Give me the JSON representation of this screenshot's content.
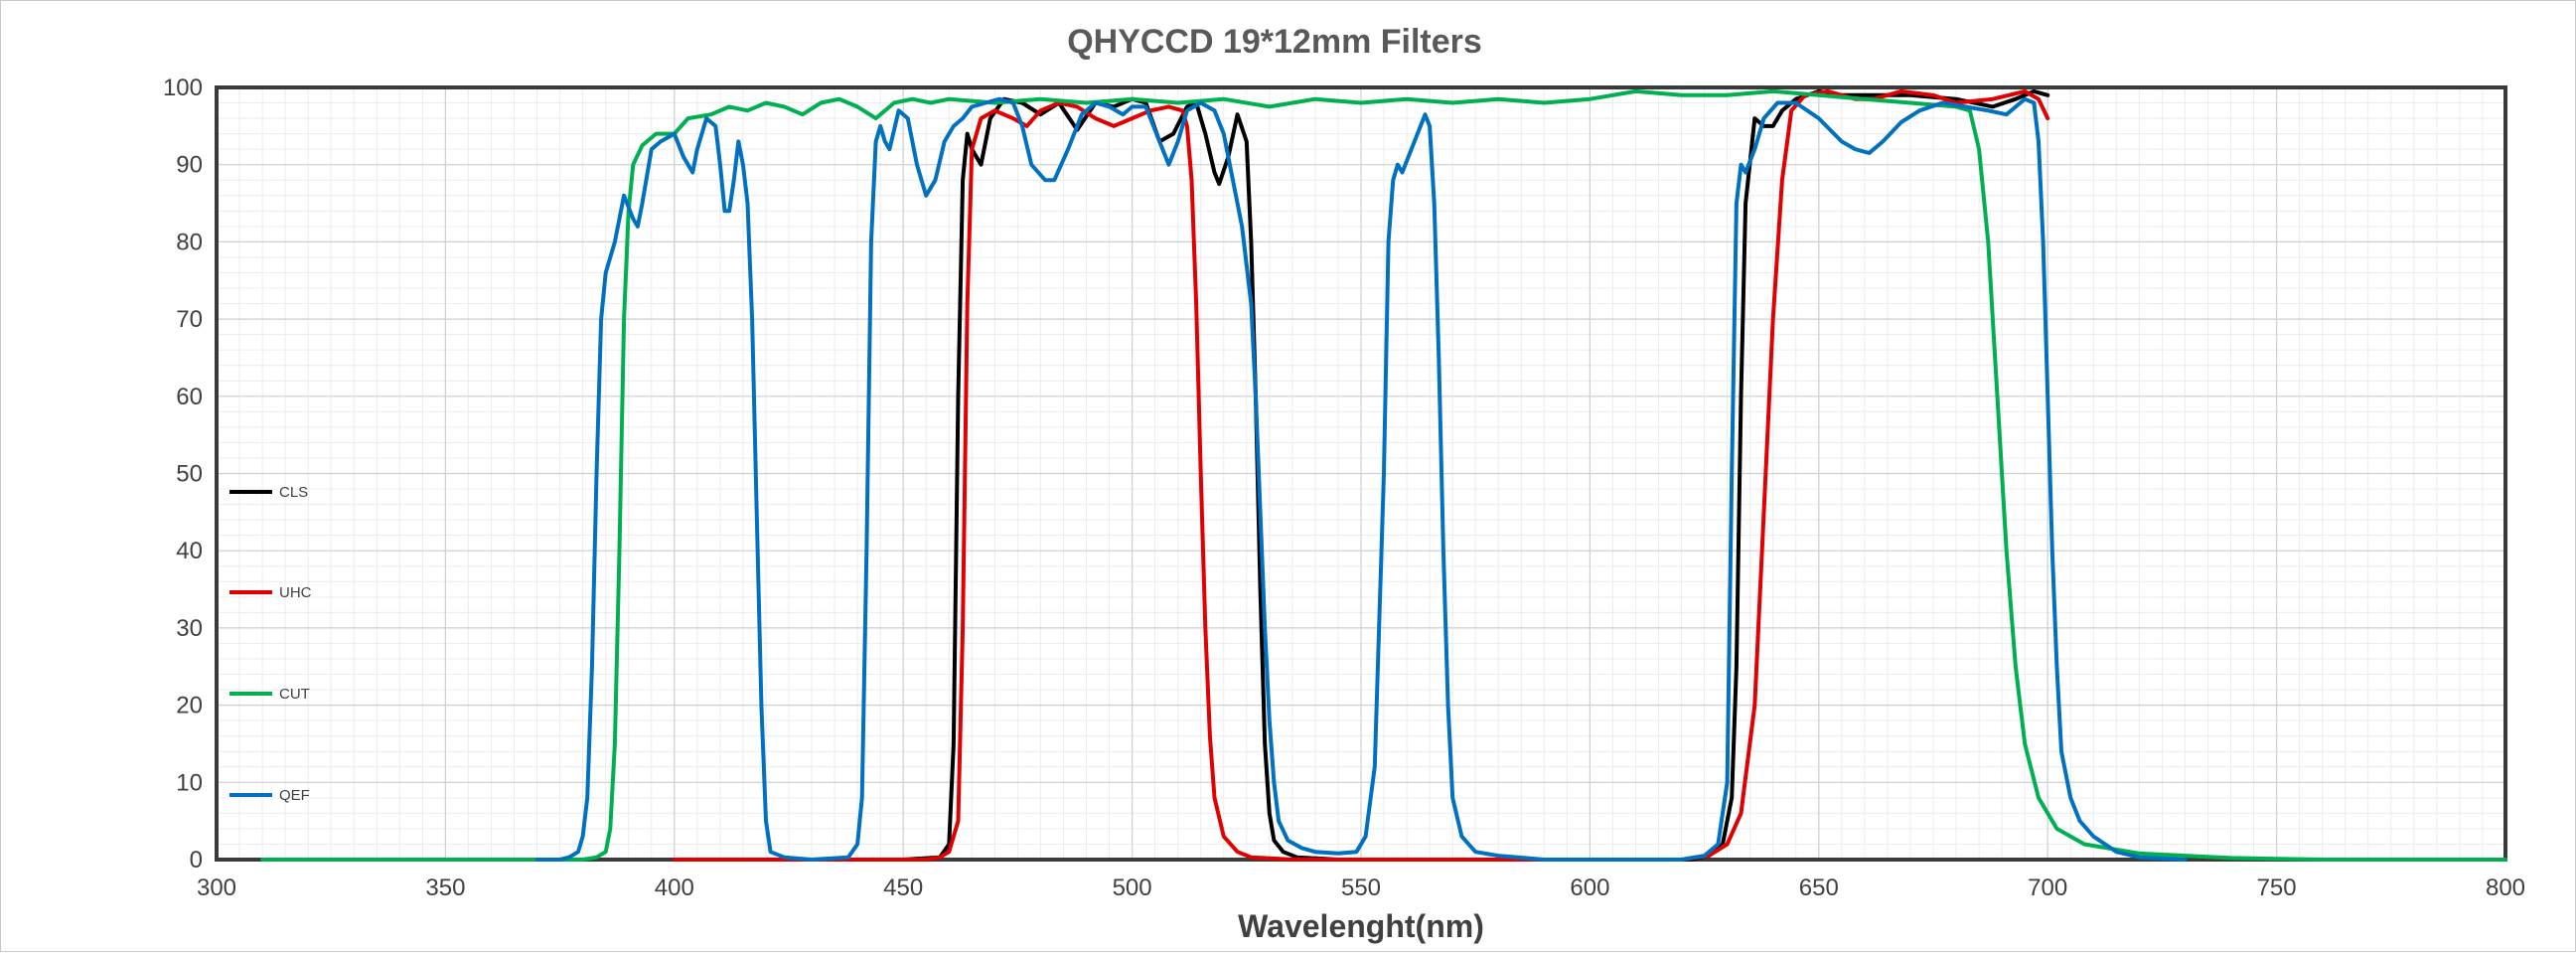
{
  "chart_data": {
    "type": "line",
    "title": "QHYCCD 19*12mm Filters",
    "xlabel": "Wavelenght(nm)",
    "ylabel": "",
    "xlim": [
      300,
      800
    ],
    "ylim": [
      0,
      100
    ],
    "x_ticks": [
      300,
      350,
      400,
      450,
      500,
      550,
      600,
      650,
      700,
      750,
      800
    ],
    "y_ticks": [
      0,
      10,
      20,
      30,
      40,
      50,
      60,
      70,
      80,
      90,
      100
    ],
    "grid": true,
    "legend_position": "left",
    "series": [
      {
        "name": "CLS",
        "color": "#000000",
        "points": [
          [
            400,
            0
          ],
          [
            450,
            0
          ],
          [
            458,
            0.3
          ],
          [
            460,
            2
          ],
          [
            461,
            15
          ],
          [
            462,
            60
          ],
          [
            463,
            88
          ],
          [
            464,
            94
          ],
          [
            465,
            92
          ],
          [
            467,
            90
          ],
          [
            469,
            96
          ],
          [
            472,
            98.5
          ],
          [
            476,
            98
          ],
          [
            480,
            96.5
          ],
          [
            484,
            98
          ],
          [
            488,
            94.5
          ],
          [
            492,
            98
          ],
          [
            496,
            97.5
          ],
          [
            500,
            98.5
          ],
          [
            503,
            98
          ],
          [
            506,
            93
          ],
          [
            509,
            94
          ],
          [
            512,
            97.5
          ],
          [
            514,
            98
          ],
          [
            516,
            94
          ],
          [
            518,
            89
          ],
          [
            519,
            87.5
          ],
          [
            521,
            91
          ],
          [
            523,
            96.5
          ],
          [
            525,
            93
          ],
          [
            526,
            80
          ],
          [
            527,
            60
          ],
          [
            528,
            35
          ],
          [
            529,
            15
          ],
          [
            530,
            6
          ],
          [
            531,
            2.5
          ],
          [
            533,
            1
          ],
          [
            536,
            0.3
          ],
          [
            545,
            0
          ],
          [
            600,
            0
          ],
          [
            622,
            0
          ],
          [
            626,
            0.5
          ],
          [
            629,
            2
          ],
          [
            631,
            8
          ],
          [
            632,
            25
          ],
          [
            633,
            60
          ],
          [
            634,
            85
          ],
          [
            636,
            96
          ],
          [
            638,
            95
          ],
          [
            640,
            95
          ],
          [
            642,
            97
          ],
          [
            645,
            98.5
          ],
          [
            650,
            99.5
          ],
          [
            655,
            99
          ],
          [
            660,
            99
          ],
          [
            670,
            99
          ],
          [
            680,
            98.5
          ],
          [
            688,
            97.5
          ],
          [
            693,
            98.5
          ],
          [
            697,
            99.5
          ],
          [
            700,
            99
          ]
        ]
      },
      {
        "name": "UHC",
        "color": "#e00000",
        "points": [
          [
            400,
            0
          ],
          [
            455,
            0
          ],
          [
            458,
            0.3
          ],
          [
            460,
            1
          ],
          [
            462,
            5
          ],
          [
            463,
            30
          ],
          [
            464,
            72
          ],
          [
            465,
            92
          ],
          [
            467,
            96
          ],
          [
            470,
            97
          ],
          [
            474,
            96
          ],
          [
            477,
            95
          ],
          [
            480,
            97
          ],
          [
            484,
            98
          ],
          [
            488,
            97.5
          ],
          [
            492,
            96
          ],
          [
            496,
            95
          ],
          [
            500,
            96
          ],
          [
            504,
            97
          ],
          [
            508,
            97.5
          ],
          [
            511,
            97
          ],
          [
            512,
            95
          ],
          [
            513,
            88
          ],
          [
            514,
            72
          ],
          [
            515,
            50
          ],
          [
            516,
            30
          ],
          [
            517,
            16
          ],
          [
            518,
            8
          ],
          [
            520,
            3
          ],
          [
            523,
            1
          ],
          [
            526,
            0.3
          ],
          [
            535,
            0
          ],
          [
            600,
            0
          ],
          [
            620,
            0
          ],
          [
            626,
            0.5
          ],
          [
            630,
            2
          ],
          [
            633,
            6
          ],
          [
            636,
            20
          ],
          [
            638,
            45
          ],
          [
            640,
            70
          ],
          [
            642,
            88
          ],
          [
            644,
            97
          ],
          [
            647,
            99
          ],
          [
            652,
            99.5
          ],
          [
            658,
            98.5
          ],
          [
            662,
            98.5
          ],
          [
            668,
            99.5
          ],
          [
            675,
            99
          ],
          [
            680,
            98
          ],
          [
            688,
            98.5
          ],
          [
            695,
            99.5
          ],
          [
            698,
            98.5
          ],
          [
            700,
            96
          ]
        ]
      },
      {
        "name": "CUT",
        "color": "#00b050",
        "points": [
          [
            310,
            0
          ],
          [
            380,
            0
          ],
          [
            383,
            0.3
          ],
          [
            385,
            1
          ],
          [
            386,
            4
          ],
          [
            387,
            15
          ],
          [
            388,
            40
          ],
          [
            389,
            70
          ],
          [
            390,
            84
          ],
          [
            391,
            90
          ],
          [
            393,
            92.5
          ],
          [
            396,
            94
          ],
          [
            400,
            94
          ],
          [
            403,
            96
          ],
          [
            408,
            96.5
          ],
          [
            412,
            97.5
          ],
          [
            416,
            97
          ],
          [
            420,
            98
          ],
          [
            424,
            97.5
          ],
          [
            428,
            96.5
          ],
          [
            432,
            98
          ],
          [
            436,
            98.5
          ],
          [
            440,
            97.5
          ],
          [
            444,
            96
          ],
          [
            448,
            98
          ],
          [
            452,
            98.5
          ],
          [
            456,
            98
          ],
          [
            460,
            98.5
          ],
          [
            470,
            98
          ],
          [
            480,
            98.5
          ],
          [
            490,
            98
          ],
          [
            500,
            98.5
          ],
          [
            510,
            98
          ],
          [
            520,
            98.5
          ],
          [
            530,
            97.5
          ],
          [
            540,
            98.5
          ],
          [
            550,
            98
          ],
          [
            560,
            98.5
          ],
          [
            570,
            98
          ],
          [
            580,
            98.5
          ],
          [
            590,
            98
          ],
          [
            600,
            98.5
          ],
          [
            610,
            99.5
          ],
          [
            620,
            99
          ],
          [
            630,
            99
          ],
          [
            640,
            99.5
          ],
          [
            650,
            99
          ],
          [
            660,
            98.5
          ],
          [
            670,
            98
          ],
          [
            680,
            97.5
          ],
          [
            683,
            97
          ],
          [
            685,
            92
          ],
          [
            687,
            80
          ],
          [
            689,
            60
          ],
          [
            691,
            40
          ],
          [
            693,
            25
          ],
          [
            695,
            15
          ],
          [
            698,
            8
          ],
          [
            702,
            4
          ],
          [
            708,
            2
          ],
          [
            720,
            0.8
          ],
          [
            740,
            0.2
          ],
          [
            760,
            0
          ],
          [
            800,
            0
          ]
        ]
      },
      {
        "name": "QEF",
        "color": "#0070c0",
        "points": [
          [
            370,
            0
          ],
          [
            375,
            0
          ],
          [
            377,
            0.3
          ],
          [
            379,
            1
          ],
          [
            380,
            3
          ],
          [
            381,
            8
          ],
          [
            382,
            25
          ],
          [
            383,
            50
          ],
          [
            384,
            70
          ],
          [
            385,
            76
          ],
          [
            387,
            80
          ],
          [
            389,
            86
          ],
          [
            391,
            83
          ],
          [
            392,
            82
          ],
          [
            393,
            85
          ],
          [
            395,
            92
          ],
          [
            397,
            93
          ],
          [
            400,
            94
          ],
          [
            402,
            91
          ],
          [
            404,
            89
          ],
          [
            405,
            92
          ],
          [
            407,
            96
          ],
          [
            409,
            95
          ],
          [
            410,
            90
          ],
          [
            411,
            84
          ],
          [
            412,
            84
          ],
          [
            413,
            88
          ],
          [
            414,
            93
          ],
          [
            415,
            90
          ],
          [
            416,
            85
          ],
          [
            417,
            70
          ],
          [
            418,
            45
          ],
          [
            419,
            20
          ],
          [
            420,
            5
          ],
          [
            421,
            1
          ],
          [
            424,
            0.3
          ],
          [
            430,
            0
          ],
          [
            438,
            0.3
          ],
          [
            440,
            2
          ],
          [
            441,
            8
          ],
          [
            442,
            40
          ],
          [
            443,
            80
          ],
          [
            444,
            93
          ],
          [
            445,
            95
          ],
          [
            446,
            93
          ],
          [
            447,
            92
          ],
          [
            449,
            97
          ],
          [
            451,
            96
          ],
          [
            453,
            90
          ],
          [
            455,
            86
          ],
          [
            457,
            88
          ],
          [
            459,
            93
          ],
          [
            461,
            95
          ],
          [
            463,
            96
          ],
          [
            465,
            97.5
          ],
          [
            468,
            98
          ],
          [
            471,
            98.5
          ],
          [
            474,
            98
          ],
          [
            476,
            95
          ],
          [
            478,
            90
          ],
          [
            481,
            88
          ],
          [
            483,
            88
          ],
          [
            486,
            92
          ],
          [
            489,
            96.5
          ],
          [
            492,
            98
          ],
          [
            495,
            97.5
          ],
          [
            498,
            96.5
          ],
          [
            500,
            97.5
          ],
          [
            503,
            97.5
          ],
          [
            506,
            93
          ],
          [
            508,
            90
          ],
          [
            510,
            93
          ],
          [
            512,
            97
          ],
          [
            515,
            98
          ],
          [
            518,
            97
          ],
          [
            520,
            94
          ],
          [
            522,
            88
          ],
          [
            524,
            82
          ],
          [
            526,
            72
          ],
          [
            527,
            60
          ],
          [
            528,
            45
          ],
          [
            529,
            30
          ],
          [
            530,
            18
          ],
          [
            531,
            10
          ],
          [
            532,
            5
          ],
          [
            534,
            2.5
          ],
          [
            537,
            1.5
          ],
          [
            540,
            1
          ],
          [
            545,
            0.8
          ],
          [
            549,
            1
          ],
          [
            551,
            3
          ],
          [
            553,
            12
          ],
          [
            555,
            50
          ],
          [
            556,
            80
          ],
          [
            557,
            88
          ],
          [
            558,
            90
          ],
          [
            559,
            89
          ],
          [
            561,
            92
          ],
          [
            563,
            95
          ],
          [
            564,
            96.5
          ],
          [
            565,
            95
          ],
          [
            566,
            85
          ],
          [
            567,
            65
          ],
          [
            568,
            40
          ],
          [
            569,
            20
          ],
          [
            570,
            8
          ],
          [
            572,
            3
          ],
          [
            575,
            1
          ],
          [
            580,
            0.5
          ],
          [
            590,
            0
          ],
          [
            600,
            0
          ],
          [
            620,
            0
          ],
          [
            625,
            0.5
          ],
          [
            628,
            2
          ],
          [
            630,
            10
          ],
          [
            631,
            50
          ],
          [
            632,
            85
          ],
          [
            633,
            90
          ],
          [
            634,
            89
          ],
          [
            636,
            92
          ],
          [
            638,
            96
          ],
          [
            641,
            98
          ],
          [
            645,
            98
          ],
          [
            650,
            96
          ],
          [
            655,
            93
          ],
          [
            658,
            92
          ],
          [
            661,
            91.5
          ],
          [
            664,
            93
          ],
          [
            668,
            95.5
          ],
          [
            672,
            97
          ],
          [
            677,
            98
          ],
          [
            682,
            97.5
          ],
          [
            687,
            97
          ],
          [
            691,
            96.5
          ],
          [
            695,
            98.5
          ],
          [
            697,
            98
          ],
          [
            698,
            93
          ],
          [
            699,
            80
          ],
          [
            700,
            60
          ],
          [
            701,
            40
          ],
          [
            702,
            25
          ],
          [
            703,
            14
          ],
          [
            705,
            8
          ],
          [
            707,
            5
          ],
          [
            710,
            3
          ],
          [
            715,
            1
          ],
          [
            720,
            0.3
          ],
          [
            730,
            0
          ]
        ]
      }
    ]
  }
}
